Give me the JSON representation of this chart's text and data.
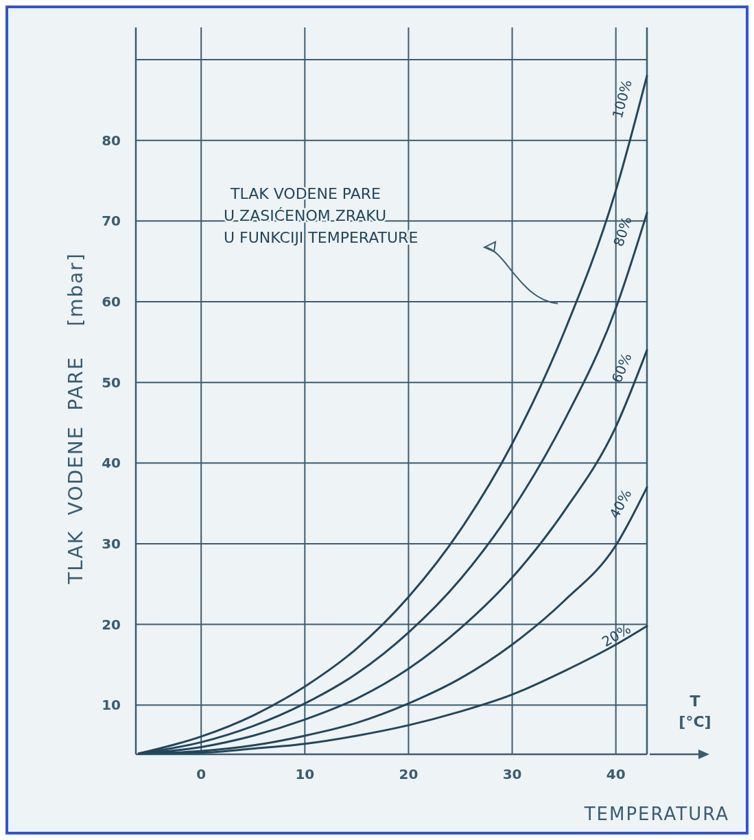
{
  "chart_data": {
    "type": "line",
    "xlabel": "TEMPERATURA",
    "ylabel": "TLAK  VODENE  PARE    [mbar]",
    "x": [
      -6,
      0,
      5,
      10,
      15,
      20,
      25,
      30,
      35,
      40,
      43
    ],
    "xlim": [
      -6.3,
      43
    ],
    "ylim": [
      3.9,
      94
    ],
    "xticks": [
      0,
      10,
      20,
      30,
      40
    ],
    "yticks": [
      10,
      20,
      30,
      40,
      50,
      60,
      70,
      80,
      {
        "value": 90,
        "label": null
      }
    ],
    "grid": true,
    "marker": "none",
    "line_style": "solid",
    "series": [
      {
        "name": "100%",
        "color": "#23465a",
        "values": [
          4,
          6.1,
          8.7,
          12.3,
          17.0,
          23.4,
          31.7,
          42.4,
          56.2,
          73.8,
          88
        ]
      },
      {
        "name": "80%",
        "color": "#23465a",
        "values": [
          4,
          5.4,
          7.4,
          10.2,
          13.9,
          19.0,
          25.6,
          34.2,
          45.2,
          59.2,
          71
        ]
      },
      {
        "name": "60%",
        "color": "#23465a",
        "values": [
          4,
          4.8,
          6.2,
          8.2,
          10.8,
          14.5,
          19.5,
          25.8,
          34.0,
          44.5,
          54
        ]
      },
      {
        "name": "40%",
        "color": "#23465a",
        "values": [
          4,
          4.3,
          5.0,
          6.2,
          7.8,
          10.2,
          13.3,
          17.5,
          22.9,
          29.8,
          37
        ]
      },
      {
        "name": "20%",
        "color": "#23465a",
        "values": [
          4,
          4.1,
          4.6,
          5.2,
          6.2,
          7.5,
          9.2,
          11.3,
          14.2,
          17.5,
          19.8
        ]
      }
    ],
    "annotations": [
      "TLAK VODENE PARE\nU ZASIĆENOM ZRAKU\nU FUNKCIJI TEMPERATURE",
      "T\n[°C]"
    ]
  }
}
